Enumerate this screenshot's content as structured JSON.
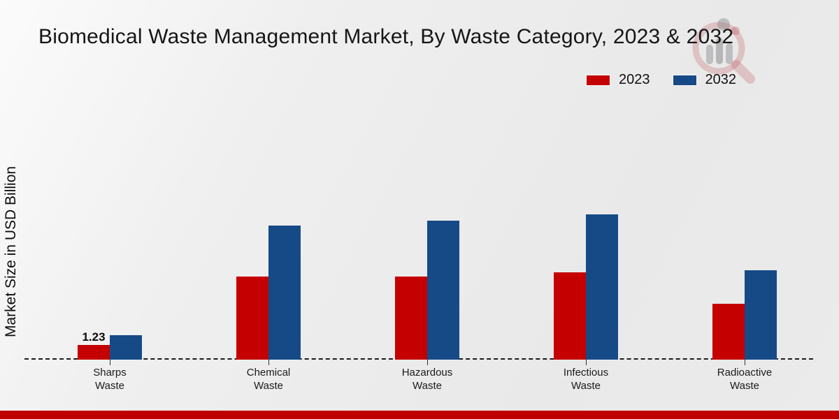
{
  "header": {
    "title": "Biomedical Waste Management Market, By Waste Category, 2023 & 2032"
  },
  "colors": {
    "series_2023": "#c40001",
    "series_2032": "#164a86",
    "footer_bar": "#bf0001",
    "background": "#ebebeb"
  },
  "chart_data": {
    "type": "bar",
    "title": "Biomedical Waste Management Market, By Waste Category, 2023 & 2032",
    "xlabel": "",
    "ylabel": "Market Size in USD Billion",
    "categories": [
      "Sharps Waste",
      "Chemical Waste",
      "Hazardous Waste",
      "Infectious Waste",
      "Radioactive Waste"
    ],
    "series": [
      {
        "name": "2023",
        "color": "#c40001",
        "values": [
          1.23,
          6.9,
          6.85,
          7.25,
          4.6
        ]
      },
      {
        "name": "2032",
        "color": "#164a86",
        "values": [
          2.05,
          11.1,
          11.5,
          12.0,
          7.4
        ]
      }
    ],
    "data_labels": [
      {
        "series_index": 0,
        "category_index": 0,
        "text": "1.23"
      }
    ],
    "baseline": {
      "value": 0,
      "style": "dashed"
    },
    "grid": "off",
    "legend_position": "top-right",
    "ylim": [
      0,
      13
    ]
  }
}
